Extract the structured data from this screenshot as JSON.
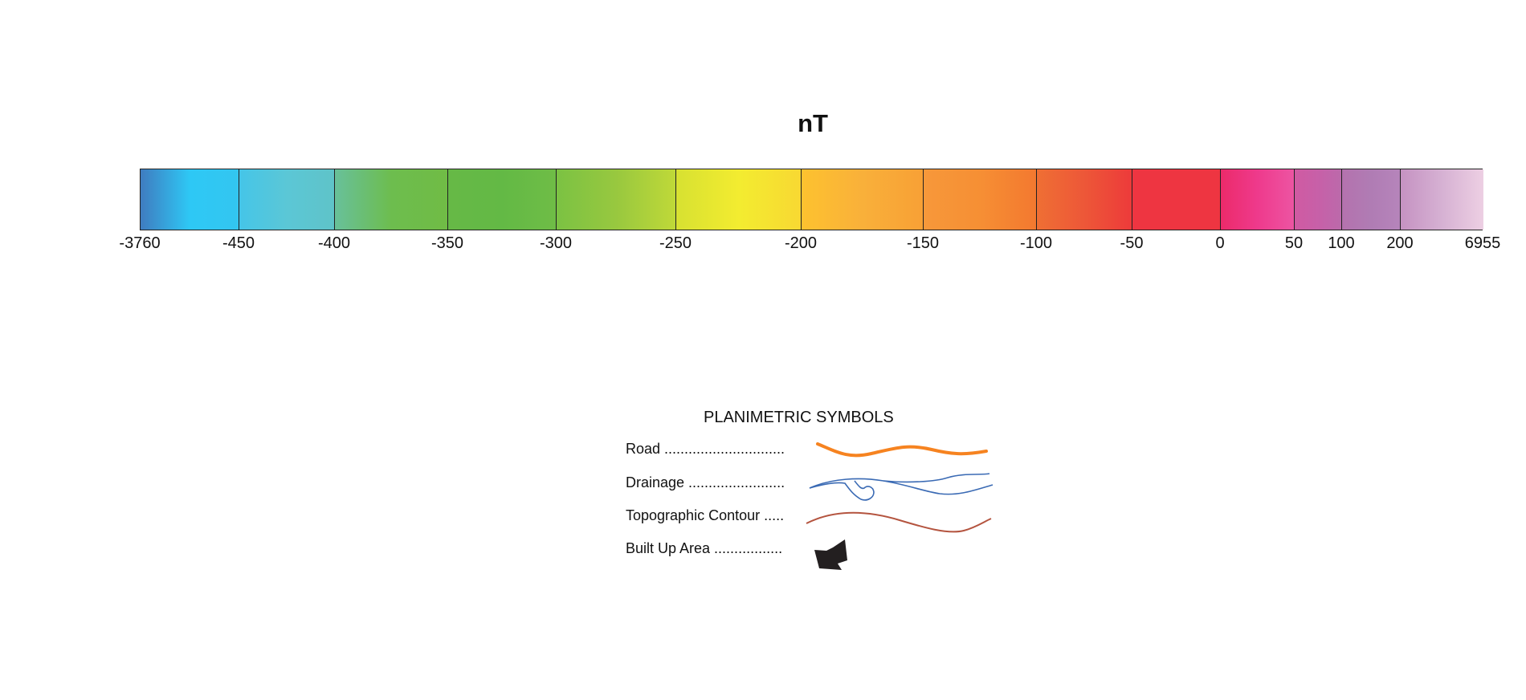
{
  "legend": {
    "unit": "nT",
    "colorbar": {
      "breaks": [
        "-3760",
        "-450",
        "-400",
        "-350",
        "-300",
        "-250",
        "-200",
        "-150",
        "-100",
        "-50",
        "0",
        "50",
        "100",
        "200",
        "6955"
      ],
      "segment_colors": [
        [
          "#3f7cc0",
          "#2ec8f5",
          "#33c6f0"
        ],
        [
          "#45c5e8",
          "#5bc7d6",
          "#5fc3c8"
        ],
        [
          "#68c09a",
          "#6dbd4e",
          "#70bc45"
        ],
        [
          "#66b946",
          "#63b945",
          "#6fbd46"
        ],
        [
          "#7bc243",
          "#98c83f",
          "#c0d938"
        ],
        [
          "#d7e131",
          "#f3ec30",
          "#f8d832"
        ],
        [
          "#fdc22f",
          "#f9b03a",
          "#f8a035"
        ],
        [
          "#f7983a",
          "#f68f34",
          "#f3782f"
        ],
        [
          "#ef6f34",
          "#ed5738",
          "#ed3a3a"
        ],
        [
          "#ee3541",
          "#ee3541",
          "#ee3541"
        ],
        [
          "#ec2a6a",
          "#ee3a8c",
          "#ed55a3"
        ],
        [
          "#d05aa2",
          "#c760a8",
          "#bb6aab"
        ],
        [
          "#b472ae",
          "#b07cb4",
          "#b685bb"
        ],
        [
          "#c592c2",
          "#d6b1d3",
          "#edcfe3"
        ]
      ]
    }
  },
  "symbols": {
    "title": "PLANIMETRIC SYMBOLS",
    "items": [
      {
        "label": "Road  ..............................",
        "color": "#f68320",
        "icon": "road-line"
      },
      {
        "label": "Drainage ........................",
        "color": "#3a6ab4",
        "icon": "drainage-line"
      },
      {
        "label": "Topographic Contour .....",
        "color": "#b4543f",
        "icon": "contour-line"
      },
      {
        "label": "Built Up Area .................",
        "color": "#231f20",
        "icon": "built-up-area-shape"
      }
    ]
  }
}
